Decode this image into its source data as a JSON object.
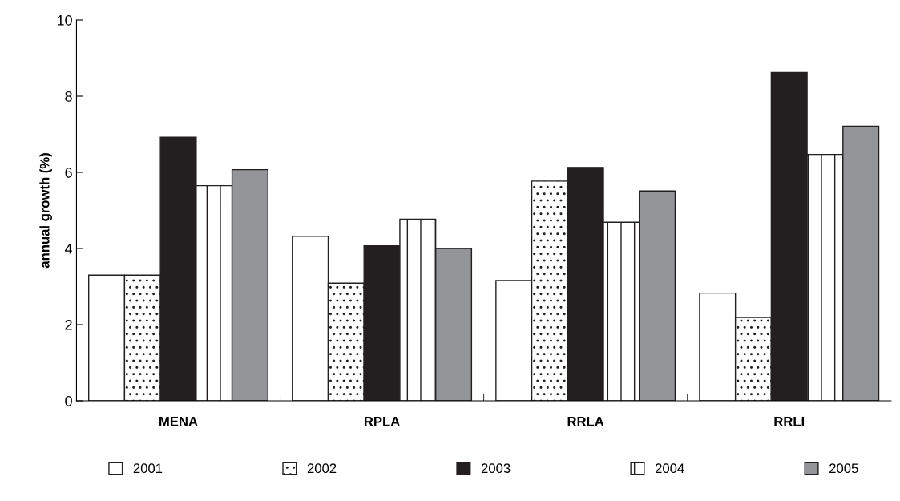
{
  "chart_data": {
    "type": "bar",
    "ylabel": "annual growth (%)",
    "categories": [
      "MENA",
      "RPLA",
      "RRLA",
      "RRLI"
    ],
    "series": [
      {
        "name": "2001",
        "color": "#ffffff",
        "values": [
          3.3,
          4.32,
          3.16,
          2.83
        ]
      },
      {
        "name": "2002",
        "color": "#231f20",
        "values": [
          3.3,
          3.09,
          5.77,
          2.19
        ]
      },
      {
        "name": "2003",
        "color": "#231f20",
        "values": [
          6.92,
          4.07,
          6.13,
          8.62
        ]
      },
      {
        "name": "2004",
        "color": "#231f20",
        "values": [
          5.65,
          4.77,
          4.69,
          6.47
        ]
      },
      {
        "name": "2005",
        "color": "#939598",
        "values": [
          6.07,
          4.0,
          5.51,
          7.21
        ]
      }
    ],
    "ylim": [
      0,
      10
    ],
    "yticks": [
      0,
      2,
      4,
      6,
      8,
      10
    ],
    "grid": false,
    "legend": "bottom"
  }
}
